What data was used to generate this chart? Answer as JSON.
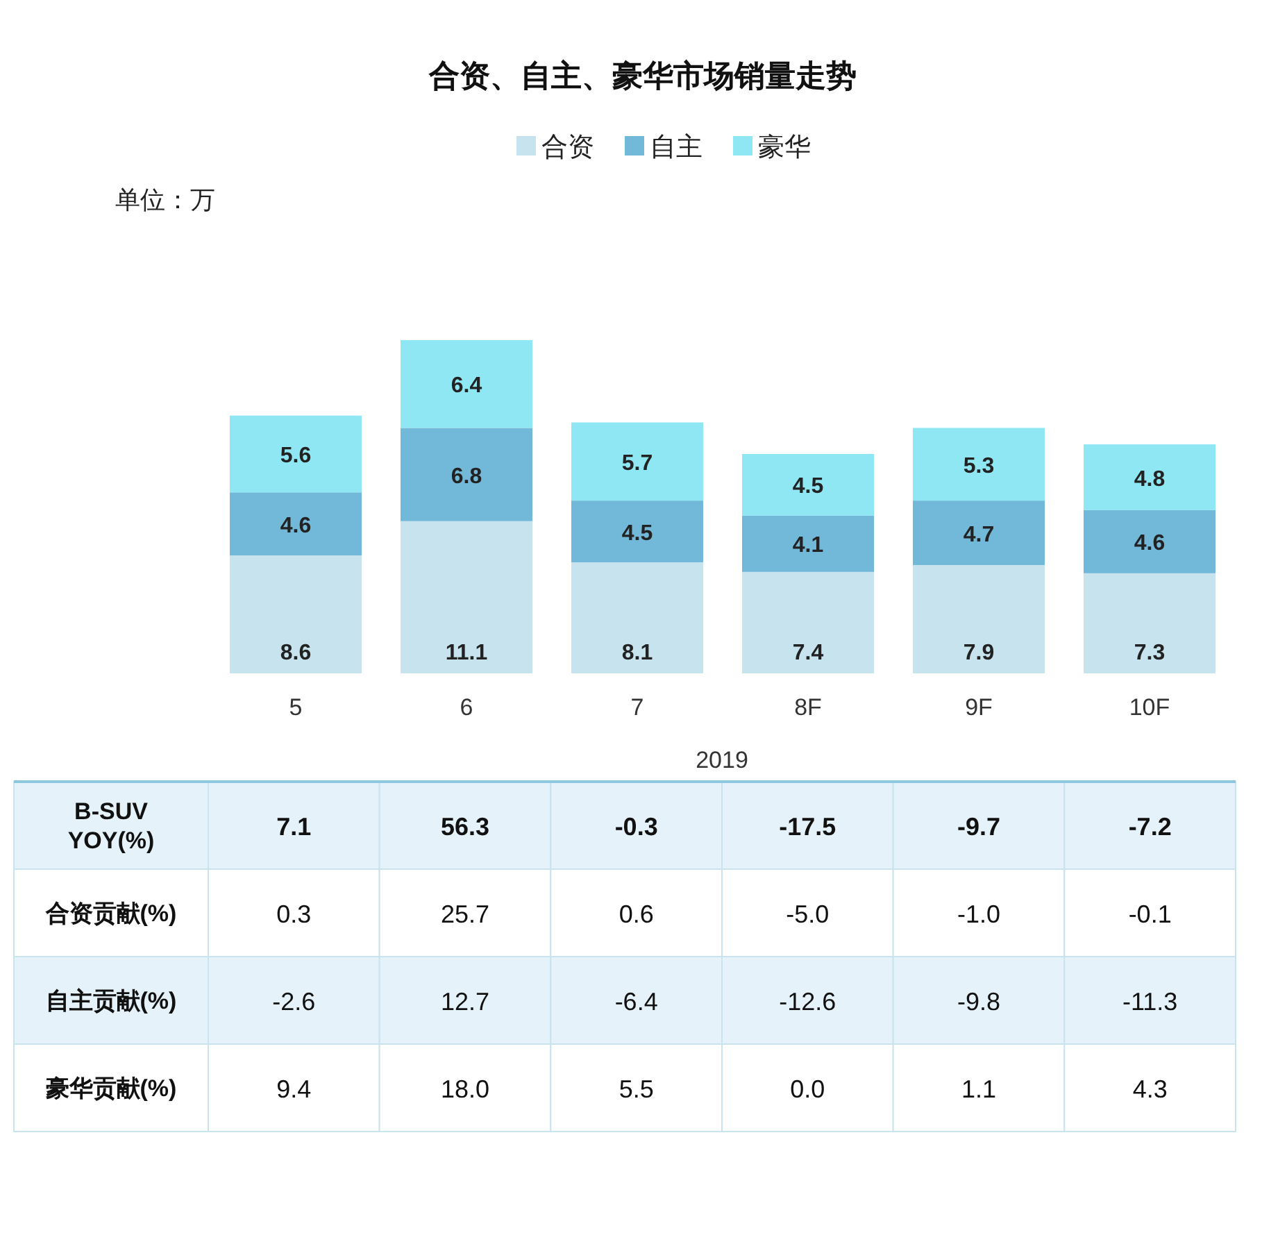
{
  "chart_data": [
    {
      "type": "bar",
      "stacked": true,
      "title": "合资、自主、豪华市场销量走势",
      "xlabel": "2019",
      "annotations": [
        "单位：万"
      ],
      "legend": "top",
      "data_labels": true,
      "categories": [
        "5",
        "6",
        "7",
        "8F",
        "9F",
        "10F"
      ],
      "series": [
        {
          "name": "合资",
          "color": "#c6e3ee",
          "values": [
            8.6,
            11.1,
            8.1,
            7.4,
            7.9,
            7.3
          ]
        },
        {
          "name": "自主",
          "color": "#72b9d9",
          "values": [
            4.6,
            6.8,
            4.5,
            4.1,
            4.7,
            4.6
          ]
        },
        {
          "name": "豪华",
          "color": "#8fe7f4",
          "values": [
            5.6,
            6.4,
            5.7,
            4.5,
            5.3,
            4.8
          ]
        }
      ]
    },
    {
      "type": "heatmap",
      "data_labels": true,
      "categories": [
        null,
        null,
        null,
        null,
        null,
        null
      ],
      "y_categories": [
        "B-SUV YOY(%)",
        "合资贡献(%)",
        "自主贡献(%)",
        "豪华贡献(%)"
      ],
      "cells": [
        [
          7.1,
          56.3,
          -0.3,
          -17.5,
          -9.7,
          -7.2
        ],
        [
          0.3,
          25.7,
          0.6,
          -5,
          -1,
          -0.1
        ],
        [
          -2.6,
          12.7,
          -6.4,
          -12.6,
          -9.8,
          -11.3
        ],
        [
          9.4,
          18,
          5.5,
          0,
          1.1,
          4.3
        ]
      ],
      "cell_labels": [
        [
          "7.1",
          "56.3",
          "-0.3",
          "-17.5",
          "-9.7",
          "-7.2"
        ],
        [
          "0.3",
          "25.7",
          "0.6",
          "-5.0",
          "-1.0",
          "-0.1"
        ],
        [
          "-2.6",
          "12.7",
          "-6.4",
          "-12.6",
          "-9.8",
          "-11.3"
        ],
        [
          "9.4",
          "18.0",
          "5.5",
          "0.0",
          "1.1",
          "4.3"
        ]
      ]
    }
  ]
}
